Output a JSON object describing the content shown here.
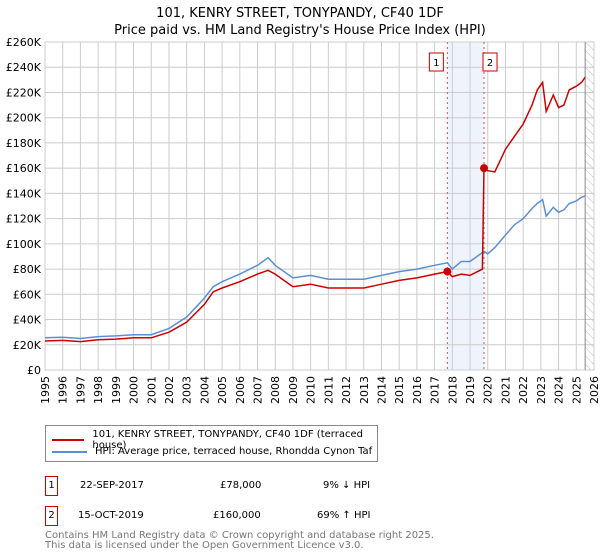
{
  "header": {
    "title": "101, KENRY STREET, TONYPANDY, CF40 1DF",
    "subtitle": "Price paid vs. HM Land Registry's House Price Index (HPI)"
  },
  "chart_data": {
    "type": "line",
    "title": "101, KENRY STREET, TONYPANDY, CF40 1DF",
    "subtitle": "Price paid vs. HM Land Registry's House Price Index (HPI)",
    "xlim": [
      1995,
      2026
    ],
    "ylim": [
      0,
      260000
    ],
    "x_ticks": [
      "1995",
      "1996",
      "1997",
      "1998",
      "1999",
      "2000",
      "2001",
      "2002",
      "2003",
      "2004",
      "2005",
      "2006",
      "2007",
      "2008",
      "2009",
      "2010",
      "2011",
      "2012",
      "2013",
      "2014",
      "2015",
      "2016",
      "2017",
      "2018",
      "2019",
      "2020",
      "2021",
      "2022",
      "2023",
      "2024",
      "2025",
      "2026"
    ],
    "y_ticks": [
      "£0",
      "£20K",
      "£40K",
      "£60K",
      "£80K",
      "£100K",
      "£120K",
      "£140K",
      "£160K",
      "£180K",
      "£200K",
      "£220K",
      "£240K",
      "£260K"
    ],
    "grid": true,
    "series": [
      {
        "name": "101, KENRY STREET, TONYPANDY, CF40 1DF (terraced house)",
        "color": "#cc0000",
        "x": [
          1995,
          1996,
          1997,
          1998,
          1999,
          2000,
          2001,
          2002,
          2003,
          2004,
          2004.5,
          2005,
          2006,
          2007,
          2007.6,
          2008,
          2009,
          2010,
          2011,
          2012,
          2013,
          2014,
          2015,
          2016,
          2017,
          2017.72,
          2018,
          2018.5,
          2019,
          2019.7,
          2019.79,
          2020,
          2020.4,
          2021,
          2021.5,
          2022,
          2022.5,
          2022.8,
          2023.1,
          2023.3,
          2023.7,
          2024,
          2024.3,
          2024.6,
          2025,
          2025.3,
          2025.5
        ],
        "y": [
          23000,
          23500,
          22500,
          24000,
          24500,
          25500,
          25500,
          30000,
          38000,
          52000,
          62000,
          65000,
          70000,
          76000,
          79000,
          76000,
          66000,
          68000,
          65000,
          65000,
          65000,
          68000,
          71000,
          73000,
          76000,
          78000,
          74000,
          76000,
          75000,
          80000,
          160000,
          158000,
          157000,
          175000,
          185000,
          195000,
          210000,
          222000,
          228000,
          205000,
          218000,
          208000,
          210000,
          222000,
          225000,
          228000,
          232000
        ]
      },
      {
        "name": "HPI: Average price, terraced house, Rhondda Cynon Taf",
        "color": "#5b8fd4",
        "x": [
          1995,
          1996,
          1997,
          1998,
          1999,
          2000,
          2001,
          2002,
          2003,
          2004,
          2004.5,
          2005,
          2006,
          2007,
          2007.6,
          2008,
          2009,
          2010,
          2011,
          2012,
          2013,
          2014,
          2015,
          2016,
          2017,
          2017.72,
          2018,
          2018.5,
          2019,
          2019.79,
          2020,
          2020.4,
          2021,
          2021.5,
          2022,
          2022.5,
          2022.8,
          2023.1,
          2023.3,
          2023.7,
          2024,
          2024.3,
          2024.6,
          2025,
          2025.3,
          2025.5
        ],
        "y": [
          25500,
          26000,
          25000,
          26500,
          27000,
          28000,
          28000,
          33000,
          42000,
          57000,
          66000,
          70000,
          76000,
          83000,
          89000,
          83000,
          73000,
          75000,
          72000,
          72000,
          72000,
          75000,
          78000,
          80000,
          83000,
          85000,
          80000,
          86000,
          86000,
          94000,
          92000,
          97000,
          107000,
          115000,
          120000,
          128000,
          132000,
          135000,
          122000,
          129000,
          125000,
          127000,
          132000,
          134000,
          137000,
          138000
        ]
      }
    ],
    "sales": [
      {
        "label": "1",
        "x": 2017.72,
        "y": 78000,
        "date": "22-SEP-2017",
        "price": "£78,000",
        "hpi": "9% ↓ HPI"
      },
      {
        "label": "2",
        "x": 2019.79,
        "y": 160000,
        "date": "15-OCT-2019",
        "price": "£160,000",
        "hpi": "69% ↑ HPI"
      }
    ],
    "future_hatch_from": 2025.5,
    "legend_position": "bottom"
  },
  "footer": {
    "line1": "Contains HM Land Registry data © Crown copyright and database right 2025.",
    "line2": "This data is licensed under the Open Government Licence v3.0."
  }
}
